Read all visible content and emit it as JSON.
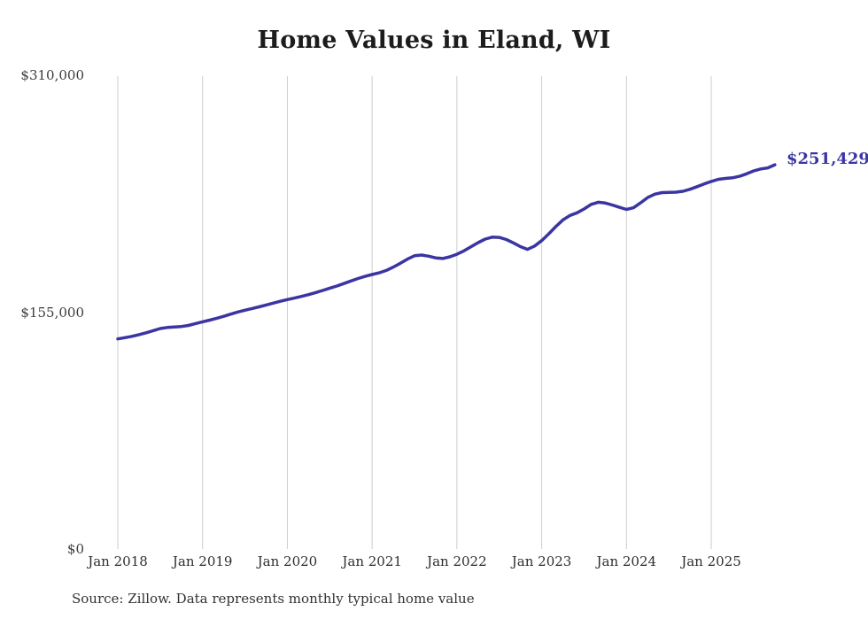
{
  "page": {
    "title": "Home Values in Eland, WI",
    "end_label": "$251,429",
    "source_note": "Source: Zillow. Data represents monthly typical home value"
  },
  "chart_data": {
    "type": "line",
    "title": "Home Values in Eland, WI",
    "xlabel": "",
    "ylabel": "",
    "x": {
      "start": "Jan 2018",
      "end": "Oct 2025",
      "interval": "monthly"
    },
    "x_tick_labels": [
      "Jan 2018",
      "Jan 2019",
      "Jan 2020",
      "Jan 2021",
      "Jan 2022",
      "Jan 2023",
      "Jan 2024",
      "Jan 2025"
    ],
    "y_ticks": [
      {
        "label": "$310,000",
        "value": 310000
      },
      {
        "label": "$155,000",
        "value": 155000
      },
      {
        "label": "$0",
        "value": 0
      }
    ],
    "ylim": [
      0,
      310000
    ],
    "grid": "vertical-only",
    "legend": "none",
    "line_color": "#3b35a2",
    "grid_color": "#cccccc",
    "end_label": {
      "text": "$251,429",
      "value": 251429
    },
    "series": [
      {
        "name": "Monthly typical home value",
        "values": [
          137500,
          138300,
          139200,
          140300,
          141500,
          142900,
          144300,
          145000,
          145300,
          145600,
          146300,
          147500,
          148700,
          149800,
          151000,
          152300,
          153700,
          155100,
          156300,
          157400,
          158500,
          159700,
          160900,
          162100,
          163200,
          164200,
          165300,
          166500,
          167800,
          169200,
          170700,
          172100,
          173700,
          175400,
          177000,
          178400,
          179600,
          180700,
          182300,
          184500,
          187000,
          189700,
          191900,
          192400,
          191600,
          190500,
          190100,
          191200,
          192900,
          195100,
          197800,
          200500,
          202800,
          204100,
          203900,
          202500,
          200300,
          197900,
          196100,
          198300,
          201800,
          206200,
          211000,
          215300,
          218300,
          220000,
          222500,
          225500,
          226900,
          226400,
          225100,
          223600,
          222200,
          223300,
          226500,
          230000,
          232200,
          233200,
          233400,
          233500,
          234100,
          235400,
          237100,
          238900,
          240500,
          241900,
          242500,
          242900,
          243900,
          245500,
          247400,
          248700,
          249400,
          251429
        ]
      }
    ]
  }
}
